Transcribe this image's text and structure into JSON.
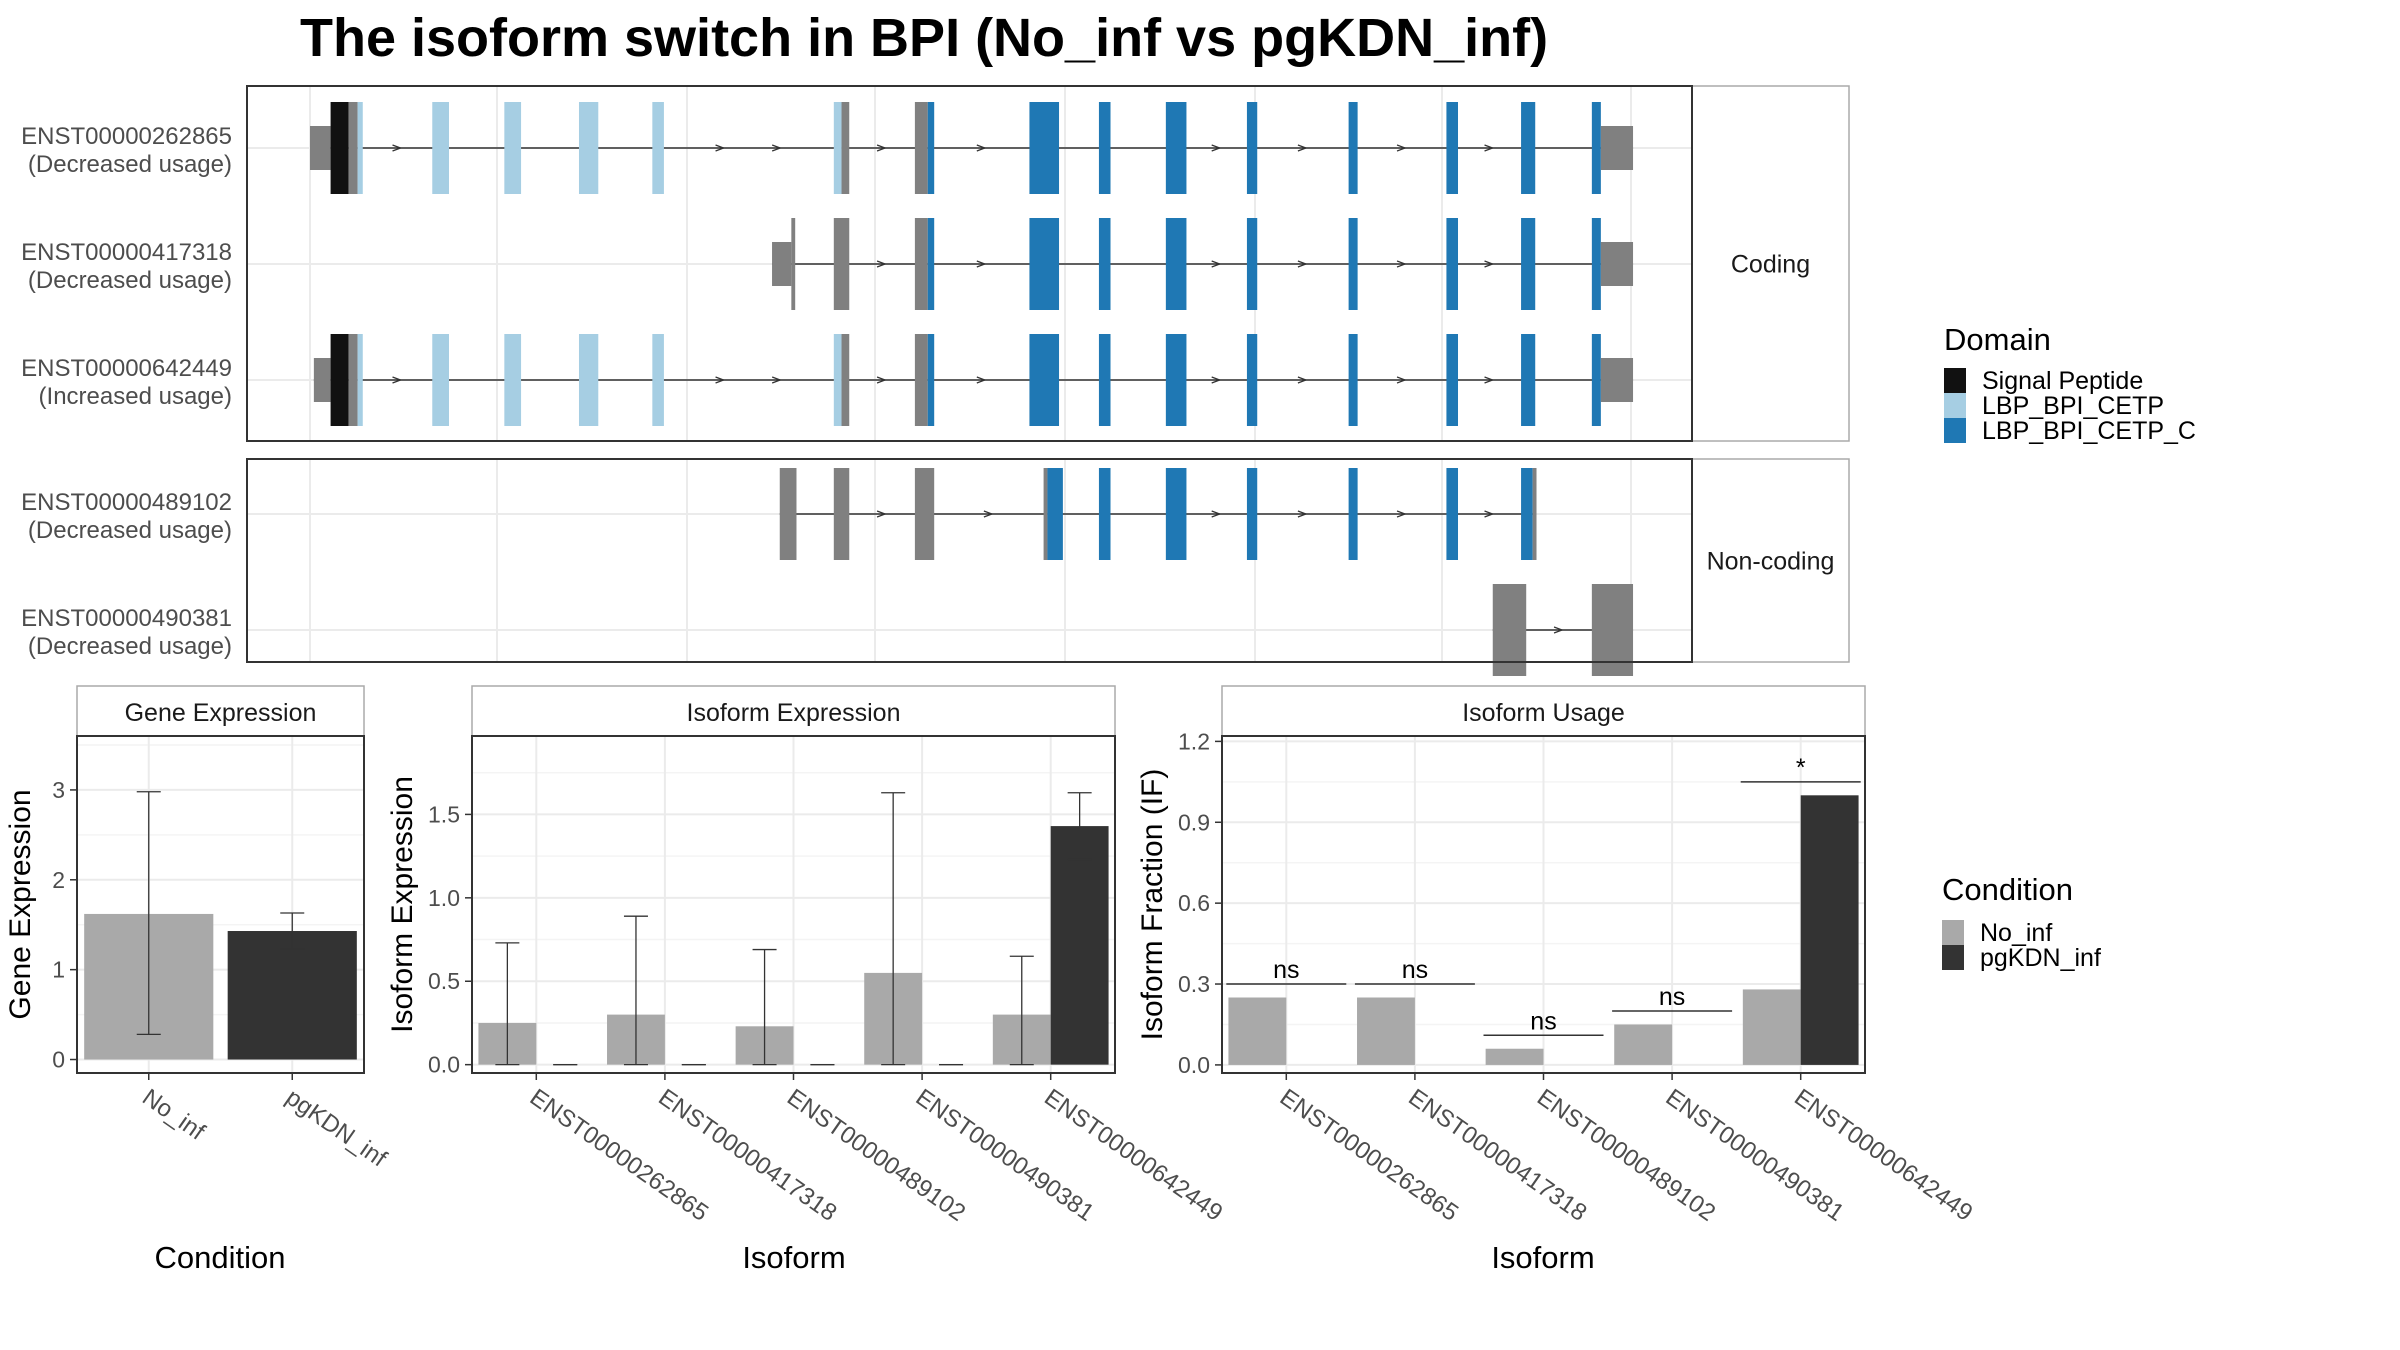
{
  "title": "The isoform switch in BPI (No_inf vs pgKDN_inf)",
  "colors": {
    "utr": "#808080",
    "signal_peptide": "#111111",
    "lbp_bpi_cetp": "#a6cee3",
    "lbp_bpi_cetp_c": "#1f78b4",
    "no_inf": "#a9a9a9",
    "pgkdn_inf": "#333333",
    "grid": "#ebebeb",
    "panel_border": "#333333",
    "strip_border": "#aaaaaa"
  },
  "structure": {
    "facets": [
      {
        "label": "Coding",
        "transcripts": [
          "ENST00000262865",
          "ENST00000417318",
          "ENST00000642449"
        ]
      },
      {
        "label": "Non-coding",
        "transcripts": [
          "ENST00000489102",
          "ENST00000490381"
        ]
      }
    ],
    "transcripts": [
      {
        "id": "ENST00000262865",
        "usage": "(Decreased usage)",
        "span": [
          0.03,
          1.0
        ],
        "exons": [
          {
            "s": 0.0,
            "e": 0.016,
            "h": "utr",
            "d": "none"
          },
          {
            "s": 0.016,
            "e": 0.03,
            "h": "cds",
            "d": "signal_peptide"
          },
          {
            "s": 0.03,
            "e": 0.037,
            "h": "cds",
            "d": "utr_gray"
          },
          {
            "s": 0.037,
            "e": 0.041,
            "h": "cds",
            "d": "lbp_bpi_cetp"
          },
          {
            "s": 0.095,
            "e": 0.108,
            "h": "cds",
            "d": "lbp_bpi_cetp"
          },
          {
            "s": 0.151,
            "e": 0.164,
            "h": "cds",
            "d": "lbp_bpi_cetp"
          },
          {
            "s": 0.209,
            "e": 0.224,
            "h": "cds",
            "d": "lbp_bpi_cetp"
          },
          {
            "s": 0.266,
            "e": 0.275,
            "h": "cds",
            "d": "lbp_bpi_cetp"
          },
          {
            "s": 0.407,
            "e": 0.413,
            "h": "cds",
            "d": "lbp_bpi_cetp"
          },
          {
            "s": 0.413,
            "e": 0.419,
            "h": "cds",
            "d": "utr_gray"
          },
          {
            "s": 0.47,
            "e": 0.48,
            "h": "cds",
            "d": "utr_gray"
          },
          {
            "s": 0.48,
            "e": 0.485,
            "h": "cds",
            "d": "lbp_bpi_cetp_c"
          },
          {
            "s": 0.559,
            "e": 0.582,
            "h": "cds",
            "d": "lbp_bpi_cetp_c"
          },
          {
            "s": 0.613,
            "e": 0.622,
            "h": "cds",
            "d": "lbp_bpi_cetp_c"
          },
          {
            "s": 0.665,
            "e": 0.681,
            "h": "cds",
            "d": "lbp_bpi_cetp_c"
          },
          {
            "s": 0.728,
            "e": 0.736,
            "h": "cds",
            "d": "lbp_bpi_cetp_c"
          },
          {
            "s": 0.807,
            "e": 0.814,
            "h": "cds",
            "d": "lbp_bpi_cetp_c"
          },
          {
            "s": 0.883,
            "e": 0.892,
            "h": "cds",
            "d": "lbp_bpi_cetp_c"
          },
          {
            "s": 0.941,
            "e": 0.952,
            "h": "cds",
            "d": "lbp_bpi_cetp_c"
          },
          {
            "s": 0.996,
            "e": 1.003,
            "h": "cds",
            "d": "lbp_bpi_cetp_c"
          },
          {
            "s": 1.003,
            "e": 1.028,
            "h": "utr",
            "d": "none"
          }
        ]
      },
      {
        "id": "ENST00000417318",
        "usage": "(Decreased usage)",
        "span": [
          0.395,
          1.0
        ],
        "exons": [
          {
            "s": 0.359,
            "e": 0.374,
            "h": "utr",
            "d": "none"
          },
          {
            "s": 0.374,
            "e": 0.377,
            "h": "cds",
            "d": "utr_gray"
          },
          {
            "s": 0.407,
            "e": 0.419,
            "h": "cds",
            "d": "utr_gray"
          },
          {
            "s": 0.47,
            "e": 0.48,
            "h": "cds",
            "d": "utr_gray"
          },
          {
            "s": 0.48,
            "e": 0.485,
            "h": "cds",
            "d": "lbp_bpi_cetp_c"
          },
          {
            "s": 0.559,
            "e": 0.582,
            "h": "cds",
            "d": "lbp_bpi_cetp_c"
          },
          {
            "s": 0.613,
            "e": 0.622,
            "h": "cds",
            "d": "lbp_bpi_cetp_c"
          },
          {
            "s": 0.665,
            "e": 0.681,
            "h": "cds",
            "d": "lbp_bpi_cetp_c"
          },
          {
            "s": 0.728,
            "e": 0.736,
            "h": "cds",
            "d": "lbp_bpi_cetp_c"
          },
          {
            "s": 0.807,
            "e": 0.814,
            "h": "cds",
            "d": "lbp_bpi_cetp_c"
          },
          {
            "s": 0.883,
            "e": 0.892,
            "h": "cds",
            "d": "lbp_bpi_cetp_c"
          },
          {
            "s": 0.941,
            "e": 0.952,
            "h": "cds",
            "d": "lbp_bpi_cetp_c"
          },
          {
            "s": 0.996,
            "e": 1.003,
            "h": "cds",
            "d": "lbp_bpi_cetp_c"
          },
          {
            "s": 1.003,
            "e": 1.028,
            "h": "utr",
            "d": "none"
          }
        ]
      },
      {
        "id": "ENST00000642449",
        "usage": "(Increased usage)",
        "span": [
          0.03,
          1.0
        ],
        "exons": [
          {
            "s": 0.003,
            "e": 0.016,
            "h": "utr",
            "d": "none"
          },
          {
            "s": 0.016,
            "e": 0.03,
            "h": "cds",
            "d": "signal_peptide"
          },
          {
            "s": 0.03,
            "e": 0.037,
            "h": "cds",
            "d": "utr_gray"
          },
          {
            "s": 0.037,
            "e": 0.041,
            "h": "cds",
            "d": "lbp_bpi_cetp"
          },
          {
            "s": 0.095,
            "e": 0.108,
            "h": "cds",
            "d": "lbp_bpi_cetp"
          },
          {
            "s": 0.151,
            "e": 0.164,
            "h": "cds",
            "d": "lbp_bpi_cetp"
          },
          {
            "s": 0.209,
            "e": 0.224,
            "h": "cds",
            "d": "lbp_bpi_cetp"
          },
          {
            "s": 0.266,
            "e": 0.275,
            "h": "cds",
            "d": "lbp_bpi_cetp"
          },
          {
            "s": 0.407,
            "e": 0.413,
            "h": "cds",
            "d": "lbp_bpi_cetp"
          },
          {
            "s": 0.413,
            "e": 0.419,
            "h": "cds",
            "d": "utr_gray"
          },
          {
            "s": 0.47,
            "e": 0.48,
            "h": "cds",
            "d": "utr_gray"
          },
          {
            "s": 0.48,
            "e": 0.485,
            "h": "cds",
            "d": "lbp_bpi_cetp_c"
          },
          {
            "s": 0.559,
            "e": 0.582,
            "h": "cds",
            "d": "lbp_bpi_cetp_c"
          },
          {
            "s": 0.613,
            "e": 0.622,
            "h": "cds",
            "d": "lbp_bpi_cetp_c"
          },
          {
            "s": 0.665,
            "e": 0.681,
            "h": "cds",
            "d": "lbp_bpi_cetp_c"
          },
          {
            "s": 0.728,
            "e": 0.736,
            "h": "cds",
            "d": "lbp_bpi_cetp_c"
          },
          {
            "s": 0.807,
            "e": 0.814,
            "h": "cds",
            "d": "lbp_bpi_cetp_c"
          },
          {
            "s": 0.883,
            "e": 0.892,
            "h": "cds",
            "d": "lbp_bpi_cetp_c"
          },
          {
            "s": 0.941,
            "e": 0.952,
            "h": "cds",
            "d": "lbp_bpi_cetp_c"
          },
          {
            "s": 0.996,
            "e": 1.003,
            "h": "cds",
            "d": "lbp_bpi_cetp_c"
          },
          {
            "s": 1.003,
            "e": 1.028,
            "h": "utr",
            "d": "none"
          }
        ]
      },
      {
        "id": "ENST00000489102",
        "usage": "(Decreased usage)",
        "span": [
          0.37,
          0.95
        ],
        "exons": [
          {
            "s": 0.365,
            "e": 0.378,
            "h": "cds",
            "d": "utr_gray"
          },
          {
            "s": 0.407,
            "e": 0.419,
            "h": "cds",
            "d": "utr_gray"
          },
          {
            "s": 0.47,
            "e": 0.485,
            "h": "cds",
            "d": "utr_gray"
          },
          {
            "s": 0.57,
            "e": 0.573,
            "h": "cds",
            "d": "utr_gray"
          },
          {
            "s": 0.573,
            "e": 0.585,
            "h": "cds",
            "d": "lbp_bpi_cetp_c"
          },
          {
            "s": 0.613,
            "e": 0.622,
            "h": "cds",
            "d": "lbp_bpi_cetp_c"
          },
          {
            "s": 0.665,
            "e": 0.681,
            "h": "cds",
            "d": "lbp_bpi_cetp_c"
          },
          {
            "s": 0.728,
            "e": 0.736,
            "h": "cds",
            "d": "lbp_bpi_cetp_c"
          },
          {
            "s": 0.807,
            "e": 0.814,
            "h": "cds",
            "d": "lbp_bpi_cetp_c"
          },
          {
            "s": 0.883,
            "e": 0.892,
            "h": "cds",
            "d": "lbp_bpi_cetp_c"
          },
          {
            "s": 0.941,
            "e": 0.95,
            "h": "cds",
            "d": "lbp_bpi_cetp_c"
          },
          {
            "s": 0.95,
            "e": 0.953,
            "h": "cds",
            "d": "utr_gray"
          }
        ]
      },
      {
        "id": "ENST00000490381",
        "usage": "(Decreased usage)",
        "span": [
          0.97,
          1.0
        ],
        "exons": [
          {
            "s": 0.919,
            "e": 0.945,
            "h": "cds",
            "d": "utr_gray"
          },
          {
            "s": 0.996,
            "e": 1.028,
            "h": "cds",
            "d": "utr_gray"
          }
        ]
      }
    ]
  },
  "legends": {
    "domain": {
      "title": "Domain",
      "items": [
        {
          "label": "Signal Peptide",
          "color": "#111111"
        },
        {
          "label": "LBP_BPI_CETP",
          "color": "#a6cee3"
        },
        {
          "label": "LBP_BPI_CETP_C",
          "color": "#1f78b4"
        }
      ]
    },
    "condition": {
      "title": "Condition",
      "items": [
        {
          "label": "No_inf",
          "color": "#a9a9a9"
        },
        {
          "label": "pgKDN_inf",
          "color": "#333333"
        }
      ]
    }
  },
  "chart_data": [
    {
      "type": "bar",
      "panel": "gene",
      "title": "Gene Expression",
      "xlabel": "Condition",
      "ylabel": "Gene Expression",
      "ylim": [
        -0.15,
        3.6
      ],
      "yticks": [
        0,
        1,
        2,
        3
      ],
      "categories": [
        "No_inf",
        "pgKDN_inf"
      ],
      "values": [
        1.62,
        1.43
      ],
      "err_low": [
        0.28,
        1.23
      ],
      "err_high": [
        2.98,
        1.63
      ]
    },
    {
      "type": "bar",
      "panel": "isoform",
      "title": "Isoform Expression",
      "xlabel": "Isoform",
      "ylabel": "Isoform Expression",
      "ylim": [
        -0.05,
        1.97
      ],
      "yticks": [
        0.0,
        0.5,
        1.0,
        1.5
      ],
      "categories": [
        "ENST00000262865",
        "ENST00000417318",
        "ENST00000489102",
        "ENST00000490381",
        "ENST00000642449"
      ],
      "series": [
        {
          "name": "No_inf",
          "values": [
            0.25,
            0.3,
            0.23,
            0.55,
            0.3
          ],
          "err_low": [
            0.0,
            0.0,
            0.0,
            0.0,
            0.0
          ],
          "err_high": [
            0.73,
            0.89,
            0.69,
            1.63,
            0.65
          ]
        },
        {
          "name": "pgKDN_inf",
          "values": [
            0.0,
            0.0,
            0.0,
            0.0,
            1.43
          ],
          "err_low": [
            0.0,
            0.0,
            0.0,
            0.0,
            1.23
          ],
          "err_high": [
            0.0,
            0.0,
            0.0,
            0.0,
            1.63
          ]
        }
      ]
    },
    {
      "type": "bar",
      "panel": "usage",
      "title": "Isoform Usage",
      "xlabel": "Isoform",
      "ylabel": "Isoform Fraction (IF)",
      "ylim": [
        -0.03,
        1.22
      ],
      "yticks": [
        "0.0",
        "0.3",
        "0.6",
        "0.9",
        "1.2"
      ],
      "categories": [
        "ENST00000262865",
        "ENST00000417318",
        "ENST00000489102",
        "ENST00000490381",
        "ENST00000642449"
      ],
      "series": [
        {
          "name": "No_inf",
          "values": [
            0.25,
            0.25,
            0.06,
            0.15,
            0.28
          ]
        },
        {
          "name": "pgKDN_inf",
          "values": [
            0.0,
            0.0,
            0.0,
            0.0,
            1.0
          ]
        }
      ],
      "significance": [
        {
          "label": "ns",
          "y": 0.3
        },
        {
          "label": "ns",
          "y": 0.3
        },
        {
          "label": "ns",
          "y": 0.11
        },
        {
          "label": "ns",
          "y": 0.2
        },
        {
          "label": "*",
          "y": 1.05
        }
      ]
    }
  ]
}
